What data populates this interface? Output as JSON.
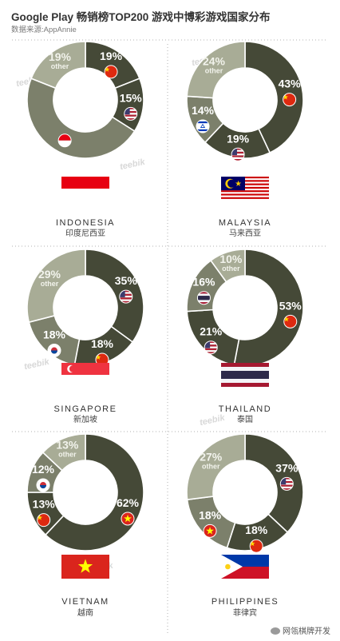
{
  "header": {
    "title": "Google Play 畅销榜TOP200 游戏中博彩游戏国家分布",
    "source": "数据来源:AppAnnie"
  },
  "watermark": {
    "brand": "teebik",
    "badge": "网瓴棋牌开发"
  },
  "colors": {
    "dark": "#454937",
    "mid": "#7c806b",
    "light": "#a8ac96",
    "lighter": "#b7bba5",
    "hole": "#ffffff",
    "divider": "#b0b0b0"
  },
  "chart_data": [
    {
      "type": "pie",
      "country": "INDONESIA",
      "country_cn": "印度尼西亚",
      "flag": "indonesia-flag",
      "slices": [
        {
          "label": "19%",
          "value": 19,
          "flag": "china-flag"
        },
        {
          "label": "15%",
          "value": 15,
          "flag": "usa-flag"
        },
        {
          "label": "",
          "value": 47,
          "flag": "indonesia-flag"
        },
        {
          "label": "19%",
          "sublabel": "other",
          "value": 19,
          "flag": ""
        }
      ]
    },
    {
      "type": "pie",
      "country": "MALAYSIA",
      "country_cn": "马来西亚",
      "flag": "malaysia-flag",
      "slices": [
        {
          "label": "43%",
          "value": 43,
          "flag": "china-flag"
        },
        {
          "label": "19%",
          "value": 19,
          "flag": "usa-flag"
        },
        {
          "label": "14%",
          "value": 14,
          "flag": "israel-flag"
        },
        {
          "label": "24%",
          "sublabel": "other",
          "value": 24,
          "flag": ""
        }
      ]
    },
    {
      "type": "pie",
      "country": "SINGAPORE",
      "country_cn": "新加坡",
      "flag": "singapore-flag",
      "slices": [
        {
          "label": "35%",
          "value": 35,
          "flag": "usa-flag"
        },
        {
          "label": "18%",
          "value": 18,
          "flag": "china-flag"
        },
        {
          "label": "18%",
          "value": 18,
          "flag": "korea-flag"
        },
        {
          "label": "29%",
          "sublabel": "other",
          "value": 29,
          "flag": ""
        }
      ]
    },
    {
      "type": "pie",
      "country": "THAILAND",
      "country_cn": "泰国",
      "flag": "thailand-flag",
      "slices": [
        {
          "label": "53%",
          "value": 53,
          "flag": "china-flag"
        },
        {
          "label": "21%",
          "value": 21,
          "flag": "usa-flag"
        },
        {
          "label": "16%",
          "value": 16,
          "flag": "thailand-flag"
        },
        {
          "label": "10%",
          "sublabel": "other",
          "value": 10,
          "flag": ""
        }
      ]
    },
    {
      "type": "pie",
      "country": "VIETNAM",
      "country_cn": "越南",
      "flag": "vietnam-flag",
      "slices": [
        {
          "label": "62%",
          "value": 62,
          "flag": "vietnam-flag"
        },
        {
          "label": "13%",
          "value": 13,
          "flag": "china-flag"
        },
        {
          "label": "12%",
          "value": 12,
          "flag": "korea-flag"
        },
        {
          "label": "13%",
          "sublabel": "other",
          "value": 13,
          "flag": ""
        }
      ]
    },
    {
      "type": "pie",
      "country": "PHILIPPINES",
      "country_cn": "菲律宾",
      "flag": "philippines-flag",
      "slices": [
        {
          "label": "37%",
          "value": 37,
          "flag": "usa-flag"
        },
        {
          "label": "18%",
          "value": 18,
          "flag": "china-flag"
        },
        {
          "label": "18%",
          "value": 18,
          "flag": "vietnam-flag"
        },
        {
          "label": "27%",
          "sublabel": "other",
          "value": 27,
          "flag": ""
        }
      ]
    }
  ]
}
